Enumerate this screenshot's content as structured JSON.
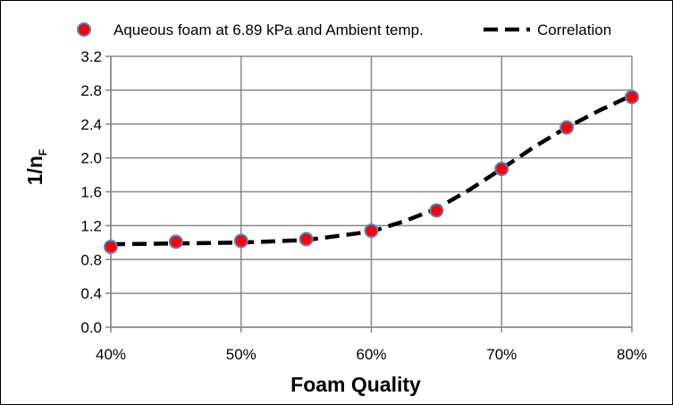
{
  "chart_data": {
    "type": "scatter",
    "title": "",
    "xlabel": "Foam Quality",
    "ylabel": "1/n",
    "ylabel_subscript": "F",
    "xlim": [
      0.4,
      0.8
    ],
    "ylim": [
      0.0,
      3.2
    ],
    "x_ticks": [
      0.4,
      0.5,
      0.6,
      0.7,
      0.8
    ],
    "x_tick_labels": [
      "40%",
      "50%",
      "60%",
      "70%",
      "80%"
    ],
    "y_ticks": [
      0.0,
      0.4,
      0.8,
      1.2,
      1.6,
      2.0,
      2.4,
      2.8,
      3.2
    ],
    "y_tick_labels": [
      "0.0",
      "0.4",
      "0.8",
      "1.2",
      "1.6",
      "2.0",
      "2.4",
      "2.8",
      "3.2"
    ],
    "grid": true,
    "legend_position": "top",
    "series": [
      {
        "name": "Aqueous foam at 6.89 kPa and Ambient temp.",
        "kind": "markers",
        "color": "#ff0000",
        "edge_color": "#5b7fbf",
        "x": [
          0.4,
          0.45,
          0.5,
          0.55,
          0.6,
          0.65,
          0.7,
          0.75,
          0.8
        ],
        "y": [
          0.95,
          1.01,
          1.02,
          1.04,
          1.14,
          1.38,
          1.87,
          2.36,
          2.72
        ]
      },
      {
        "name": "Correlation",
        "kind": "dashed-line",
        "color": "#000000",
        "x": [
          0.4,
          0.45,
          0.5,
          0.55,
          0.6,
          0.625,
          0.65,
          0.675,
          0.7,
          0.725,
          0.75,
          0.775,
          0.8
        ],
        "y": [
          0.98,
          0.99,
          1.0,
          1.03,
          1.13,
          1.25,
          1.4,
          1.62,
          1.87,
          2.13,
          2.36,
          2.56,
          2.74
        ]
      }
    ]
  }
}
